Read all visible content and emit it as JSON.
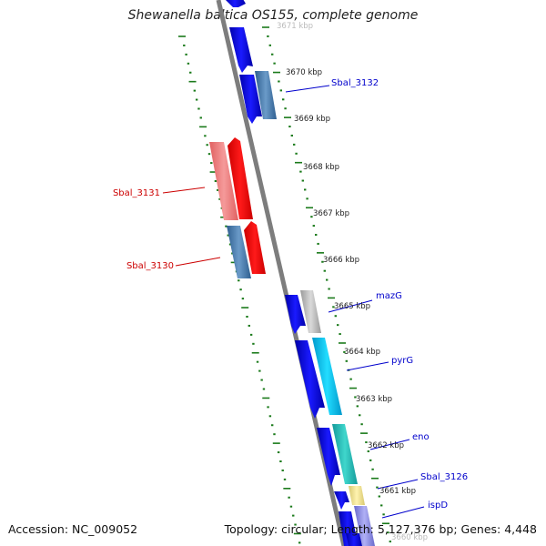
{
  "title": "Shewanella baltica OS155, complete genome",
  "footer": {
    "accession": "Accession: NC_009052",
    "summary": "Topology: circular; Length: 5,127,376 bp; Genes: 4,448"
  },
  "colors": {
    "backbone": "#8a8a8a",
    "tick": "#1a7a1a",
    "forward_label": "#0000cc",
    "reverse_label": "#cc0000"
  },
  "ruler_labels": [
    "3671 kbp",
    "3670 kbp",
    "3669 kbp",
    "3668 kbp",
    "3667 kbp",
    "3666 kbp",
    "3665 kbp",
    "3664 kbp",
    "3663 kbp",
    "3662 kbp",
    "3661 kbp",
    "3660 kbp"
  ],
  "gene_labels": [
    {
      "name": "Sbal_3132",
      "strand": "forward"
    },
    {
      "name": "Sbal_3131",
      "strand": "reverse"
    },
    {
      "name": "Sbal_3130",
      "strand": "reverse"
    },
    {
      "name": "mazG",
      "strand": "forward"
    },
    {
      "name": "pyrG",
      "strand": "forward"
    },
    {
      "name": "eno",
      "strand": "forward"
    },
    {
      "name": "Sbal_3126",
      "strand": "forward"
    },
    {
      "name": "ispD",
      "strand": "forward"
    }
  ]
}
